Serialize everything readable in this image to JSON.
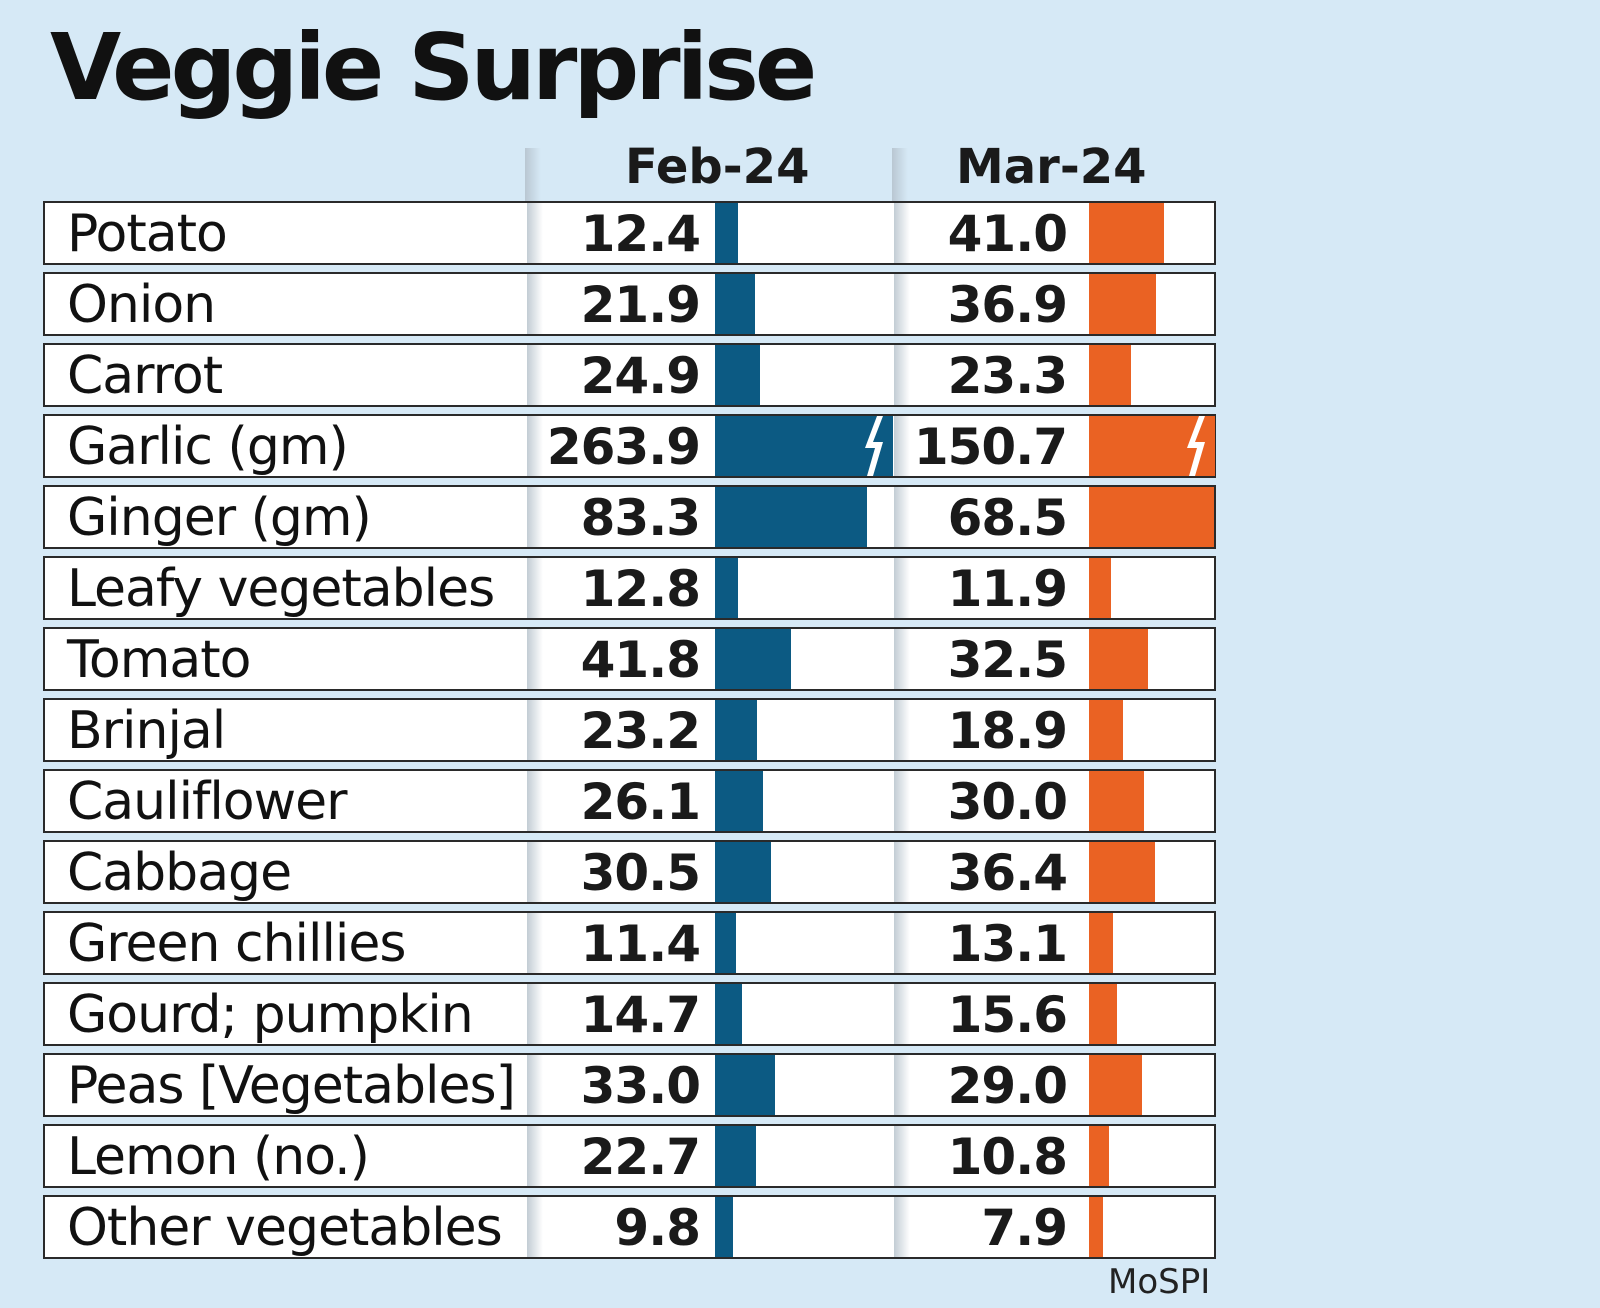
{
  "title": "Veggie Surprise",
  "source": "MoSPI",
  "chart_data": {
    "type": "bar",
    "title": "Veggie Surprise",
    "categories": [
      "Potato",
      "Onion",
      "Carrot",
      "Garlic (gm)",
      "Ginger (gm)",
      "Leafy vegetables",
      "Tomato",
      "Brinjal",
      "Cauliflower",
      "Cabbage",
      "Green chillies",
      "Gourd; pumpkin",
      "Peas [Vegetables]",
      "Lemon (no.)",
      "Other vegetables"
    ],
    "series": [
      {
        "name": "Feb-24",
        "color": "#0c5a83",
        "values": [
          12.4,
          21.9,
          24.9,
          263.9,
          83.3,
          12.8,
          41.8,
          23.2,
          26.1,
          30.5,
          11.4,
          14.7,
          33.0,
          22.7,
          9.8
        ],
        "labels": [
          "12.4",
          "21.9",
          "24.9",
          "263.9",
          "83.3",
          "12.8",
          "41.8",
          "23.2",
          "26.1",
          "30.5",
          "11.4",
          "14.7",
          "33.0",
          "22.7",
          "9.8"
        ]
      },
      {
        "name": "Mar-24",
        "color": "#ea6223",
        "values": [
          41.0,
          36.9,
          23.3,
          150.7,
          68.5,
          11.9,
          32.5,
          18.9,
          30.0,
          36.4,
          13.1,
          15.6,
          29.0,
          10.8,
          7.9
        ],
        "labels": [
          "41.0",
          "36.9",
          "23.3",
          "150.7",
          "68.5",
          "11.9",
          "32.5",
          "18.9",
          "30.0",
          "36.4",
          "13.1",
          "15.6",
          "29.0",
          "10.8",
          "7.9"
        ]
      }
    ],
    "axis_broken_for": [
      "Garlic (gm)"
    ],
    "grid": false
  }
}
